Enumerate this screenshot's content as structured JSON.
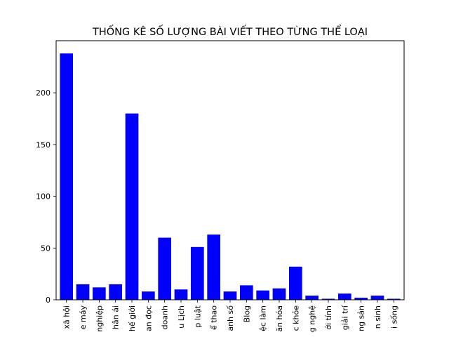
{
  "chart_data": {
    "type": "bar",
    "title": "THỐNG KÊ SỐ LƯỢNG BÀI VIẾT THEO TỪNG THỂ LOẠI",
    "xlabel": "",
    "ylabel": "",
    "ylim": [
      0,
      250
    ],
    "yticks": [
      0,
      50,
      100,
      150,
      200
    ],
    "bar_color": "#0000ff",
    "grid": false,
    "categories": [
      "Xã hội",
      "Xe máy",
      "Nghiệp",
      "Thân ái",
      "Thế giới",
      "Bạn đọc",
      "Kinh doanh",
      "Du Lịch",
      "Pháp luật",
      "Thể thao",
      "Nhanh số",
      "Blog",
      "Việc làm",
      "Văn hóa",
      "Sức khỏe",
      "Công nghệ",
      "Giới tính",
      "Giải trí",
      "Nông sản",
      "Tuyển sinh",
      "Đời sống"
    ],
    "tick_labels_visible": [
      "xã hội",
      "e máy",
      "nghiệp",
      "hân ái",
      "hế giới",
      "an đọc",
      "doanh",
      "u Lịch",
      "p luật",
      "ể thao",
      "anh số",
      "Blog",
      "ệc làm",
      "ăn hóa",
      "c khỏe",
      "g nghệ",
      "ới tính",
      "giải trí",
      "ng sản",
      "n sinh",
      "i sống"
    ],
    "values": [
      238,
      15,
      12,
      15,
      180,
      8,
      60,
      10,
      51,
      63,
      8,
      14,
      9,
      11,
      32,
      4,
      1,
      6,
      2,
      4,
      1
    ]
  }
}
